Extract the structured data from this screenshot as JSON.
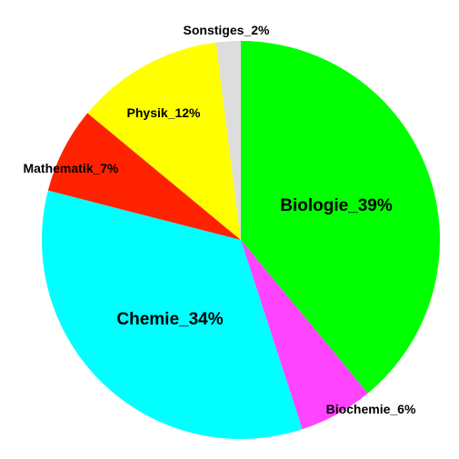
{
  "chart_data": {
    "type": "pie",
    "title": "",
    "start": "top",
    "direction": "clockwise",
    "slices": [
      {
        "label": "Biologie_39%",
        "category": "Biologie",
        "value": 39,
        "color": "#00ff00"
      },
      {
        "label": "Biochemie_6%",
        "category": "Biochemie",
        "value": 6,
        "color": "#ff44ff"
      },
      {
        "label": "Chemie_34%",
        "category": "Chemie",
        "value": 34,
        "color": "#00ffff"
      },
      {
        "label": "Mathematik_7%",
        "category": "Mathematik",
        "value": 7,
        "color": "#ff2200"
      },
      {
        "label": "Physik_12%",
        "category": "Physik",
        "value": 12,
        "color": "#ffff00"
      },
      {
        "label": "Sonstiges_2%",
        "category": "Sonstiges",
        "value": 2,
        "color": "#dddddd"
      }
    ]
  }
}
